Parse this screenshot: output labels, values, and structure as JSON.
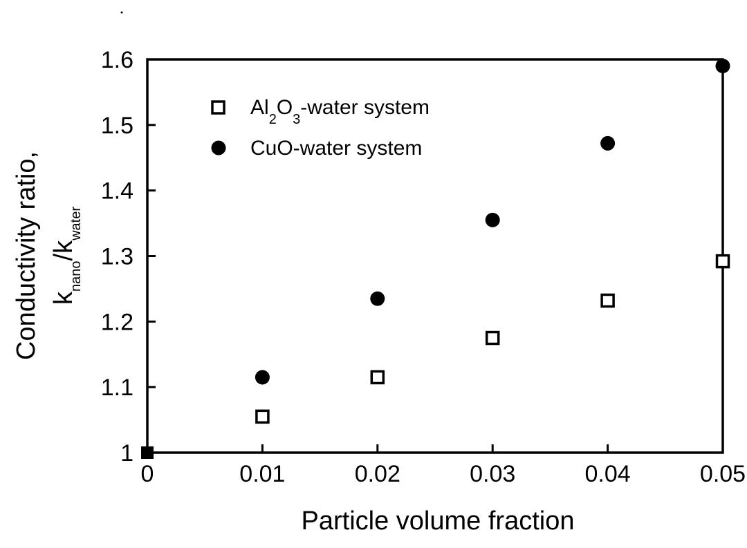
{
  "chart_data": {
    "type": "scatter",
    "xlabel": "Particle volume fraction",
    "ylabel_line1": "Conductivity ratio,",
    "ylabel_line2": {
      "k1": "k",
      "sub1": "nano",
      "slash": "/k",
      "sub2": "water"
    },
    "xlim": [
      0,
      0.05
    ],
    "ylim": [
      1,
      1.6
    ],
    "x_ticks": [
      "0",
      "0.01",
      "0.02",
      "0.03",
      "0.04",
      "0.05"
    ],
    "y_ticks": [
      "1",
      "1.1",
      "1.2",
      "1.3",
      "1.4",
      "1.5",
      "1.6"
    ],
    "grid": false,
    "legend_position": "top-left",
    "series": [
      {
        "legend": {
          "prefix": "Al",
          "sub1": "2",
          "mid": "O",
          "sub2": "3",
          "suffix": "-water system"
        },
        "marker": "open-square",
        "x": [
          0.01,
          0.02,
          0.03,
          0.04,
          0.05
        ],
        "y": [
          1.055,
          1.115,
          1.175,
          1.232,
          1.292
        ]
      },
      {
        "legend": {
          "text": "CuO-water system"
        },
        "marker": "filled-circle",
        "x": [
          0.01,
          0.02,
          0.03,
          0.04,
          0.05
        ],
        "y": [
          1.115,
          1.235,
          1.355,
          1.472,
          1.59
        ]
      }
    ],
    "origin_point": {
      "x": 0,
      "y": 1,
      "marker": "filled-square"
    }
  }
}
